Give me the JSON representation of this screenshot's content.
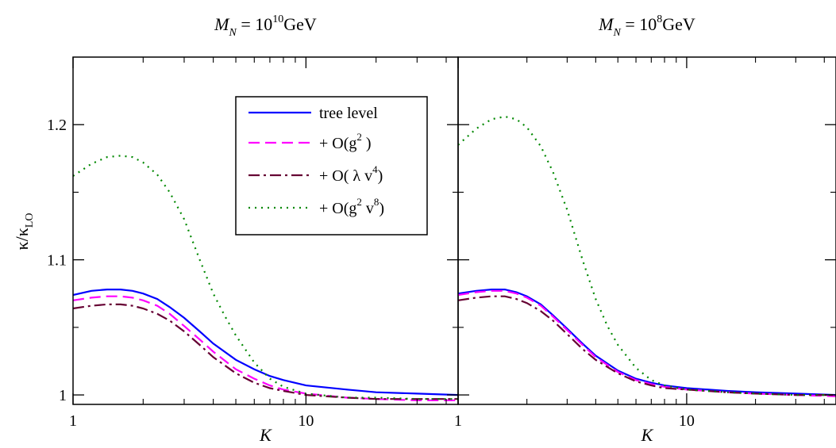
{
  "chart_data": {
    "type": "line",
    "ylabel": "κ/κ",
    "ylabel_sub": "LO",
    "ylim": [
      0.993,
      1.25
    ],
    "yticks": [
      {
        "value": 1.0,
        "label": "1"
      },
      {
        "value": 1.1,
        "label": "1.1"
      },
      {
        "value": 1.2,
        "label": "1.2"
      }
    ],
    "legend": {
      "placement": "left panel, top-center",
      "entries": [
        {
          "label": "tree level"
        },
        {
          "label": "+ O(g",
          "sup": "2",
          "tail": " )"
        },
        {
          "label": "+ O( λ v",
          "sup": "4",
          "tail": ")"
        },
        {
          "label": "+ O(g",
          "sup": "2",
          "mid": " v",
          "sup2": "8",
          "tail": ")"
        }
      ]
    },
    "series_styles": [
      {
        "color": "#0000ff",
        "dash": ""
      },
      {
        "color": "#ff00ff",
        "dash": "14,7"
      },
      {
        "color": "#660033",
        "dash": "14,5,3,5"
      },
      {
        "color": "#008800",
        "dash": "2,6"
      }
    ],
    "panels": [
      {
        "title_pre": "M",
        "title_sub": "N",
        "title_mid": " = 10",
        "title_sup": "10",
        "title_unit": "GeV",
        "xlabel": "K",
        "xscale": "log",
        "xlim": [
          1,
          45
        ],
        "xticks": [
          {
            "value": 1,
            "label": "1"
          },
          {
            "value": 10,
            "label": "10"
          }
        ],
        "series": [
          {
            "x": [
              1,
              1.2,
              1.4,
              1.6,
              1.8,
              2,
              2.3,
              2.6,
              3,
              3.5,
              4,
              5,
              6,
              7,
              8,
              10,
              15,
              20,
              30,
              45
            ],
            "values": [
              1.074,
              1.077,
              1.078,
              1.078,
              1.077,
              1.075,
              1.071,
              1.065,
              1.057,
              1.047,
              1.038,
              1.026,
              1.019,
              1.014,
              1.011,
              1.007,
              1.004,
              1.002,
              1.001,
              1.0
            ]
          },
          {
            "x": [
              1,
              1.2,
              1.4,
              1.6,
              1.8,
              2,
              2.3,
              2.6,
              3,
              3.5,
              4,
              5,
              6,
              7,
              8,
              10,
              15,
              20,
              30,
              45
            ],
            "values": [
              1.07,
              1.072,
              1.073,
              1.073,
              1.072,
              1.07,
              1.066,
              1.06,
              1.051,
              1.041,
              1.032,
              1.019,
              1.012,
              1.007,
              1.004,
              1.001,
              0.998,
              0.997,
              0.996,
              0.996
            ]
          },
          {
            "x": [
              1,
              1.2,
              1.4,
              1.6,
              1.8,
              2,
              2.3,
              2.6,
              3,
              3.5,
              4,
              5,
              6,
              7,
              8,
              10,
              15,
              20,
              30,
              45
            ],
            "values": [
              1.064,
              1.066,
              1.067,
              1.067,
              1.066,
              1.064,
              1.06,
              1.055,
              1.047,
              1.037,
              1.028,
              1.016,
              1.009,
              1.005,
              1.003,
              1.0,
              0.998,
              0.997,
              0.997,
              0.997
            ]
          },
          {
            "x": [
              1,
              1.2,
              1.4,
              1.6,
              1.8,
              2,
              2.3,
              2.6,
              3,
              3.5,
              4,
              4.5,
              5,
              6,
              7,
              8,
              10,
              15,
              20,
              30,
              45
            ],
            "values": [
              1.162,
              1.171,
              1.176,
              1.177,
              1.176,
              1.172,
              1.163,
              1.15,
              1.13,
              1.1,
              1.075,
              1.058,
              1.044,
              1.024,
              1.012,
              1.006,
              1.001,
              0.998,
              0.998,
              0.997,
              0.997
            ]
          }
        ]
      },
      {
        "title_pre": "M",
        "title_sub": "N",
        "title_mid": " = 10",
        "title_sup": "8",
        "title_unit": "GeV",
        "xlabel": "K",
        "xscale": "log",
        "xlim": [
          1,
          45
        ],
        "xticks": [
          {
            "value": 1,
            "label": "1"
          },
          {
            "value": 10,
            "label": "10"
          }
        ],
        "series": [
          {
            "x": [
              1,
              1.2,
              1.4,
              1.6,
              1.8,
              2,
              2.3,
              2.6,
              3,
              3.5,
              4,
              5,
              6,
              7,
              8,
              10,
              15,
              20,
              30,
              45
            ],
            "values": [
              1.075,
              1.077,
              1.078,
              1.078,
              1.076,
              1.073,
              1.067,
              1.059,
              1.049,
              1.038,
              1.029,
              1.018,
              1.012,
              1.009,
              1.007,
              1.005,
              1.003,
              1.002,
              1.001,
              1.0
            ]
          },
          {
            "x": [
              1,
              1.2,
              1.4,
              1.6,
              1.8,
              2,
              2.3,
              2.6,
              3,
              3.5,
              4,
              5,
              6,
              7,
              8,
              10,
              15,
              20,
              30,
              45
            ],
            "values": [
              1.074,
              1.076,
              1.077,
              1.077,
              1.075,
              1.072,
              1.066,
              1.058,
              1.048,
              1.037,
              1.028,
              1.017,
              1.011,
              1.008,
              1.006,
              1.004,
              1.002,
              1.001,
              1.0,
              0.999
            ]
          },
          {
            "x": [
              1,
              1.2,
              1.4,
              1.6,
              1.8,
              2,
              2.3,
              2.6,
              3,
              3.5,
              4,
              5,
              6,
              7,
              8,
              10,
              15,
              20,
              30,
              45
            ],
            "values": [
              1.07,
              1.072,
              1.073,
              1.073,
              1.071,
              1.068,
              1.062,
              1.055,
              1.045,
              1.034,
              1.026,
              1.016,
              1.01,
              1.007,
              1.005,
              1.004,
              1.002,
              1.001,
              1.0,
              1.0
            ]
          },
          {
            "x": [
              1,
              1.2,
              1.4,
              1.6,
              1.8,
              2,
              2.3,
              2.6,
              3,
              3.5,
              4,
              4.5,
              5,
              6,
              7,
              8,
              10,
              15,
              20,
              30,
              45
            ],
            "values": [
              1.185,
              1.197,
              1.204,
              1.206,
              1.204,
              1.198,
              1.184,
              1.165,
              1.137,
              1.1,
              1.071,
              1.051,
              1.037,
              1.02,
              1.011,
              1.007,
              1.004,
              1.002,
              1.001,
              1.0,
              1.0
            ]
          }
        ]
      }
    ]
  }
}
